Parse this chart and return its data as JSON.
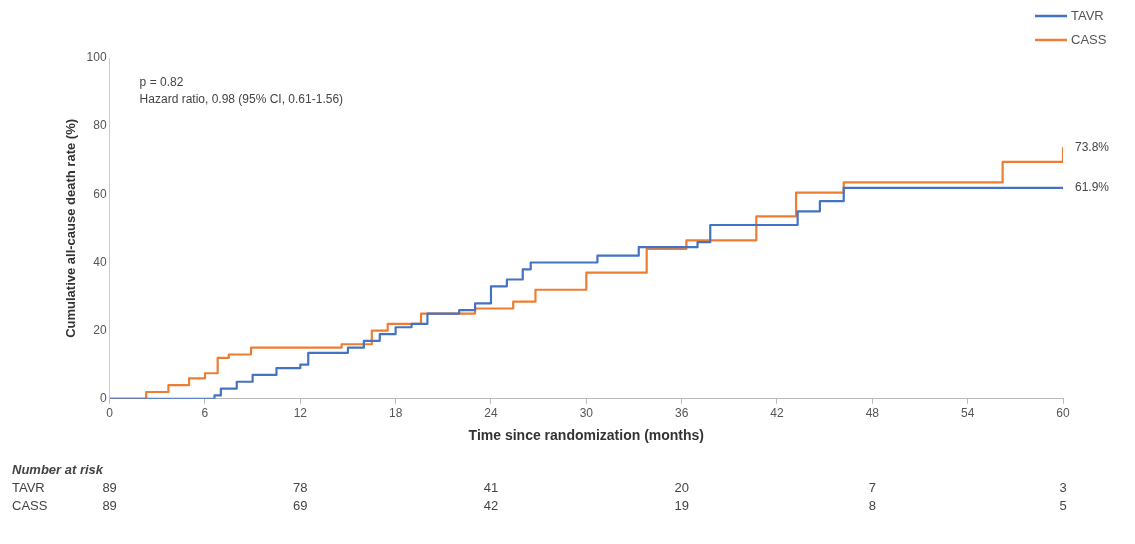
{
  "chart_data": {
    "type": "step",
    "xlabel": "Time since randomization (months)",
    "ylabel": "Cumulative all-cause death rate (%)",
    "xlim": [
      0,
      60
    ],
    "xticks": [
      0,
      6,
      12,
      18,
      24,
      30,
      36,
      42,
      48,
      54,
      60
    ],
    "ylim": [
      0,
      100
    ],
    "yticks": [
      0,
      20,
      40,
      60,
      80,
      100
    ],
    "grid": false,
    "legend": "top right",
    "line_style": "solid",
    "marker": "none",
    "series": [
      {
        "name": "TAVR",
        "color": "#4472c4",
        "x": [
          0,
          6.6,
          7,
          8,
          9,
          10.5,
          12,
          12.5,
          15,
          16,
          17,
          18,
          19,
          20,
          22,
          23,
          24,
          25,
          26,
          26.5,
          30.7,
          33.3,
          37,
          37.8,
          43.3,
          44.7,
          46.2,
          60
        ],
        "values": [
          0,
          1,
          3,
          5,
          7,
          9,
          10,
          13.5,
          15,
          17,
          19,
          21,
          22,
          25,
          26,
          28,
          33,
          35,
          38,
          40,
          42,
          44.5,
          46,
          51,
          55,
          58,
          61.9,
          61.9
        ]
      },
      {
        "name": "CASS",
        "color": "#ed7d31",
        "x": [
          0,
          2.3,
          3.7,
          5,
          6,
          6.8,
          7.5,
          8.9,
          14.6,
          16.5,
          17.5,
          19.6,
          23,
          25.4,
          26.8,
          30,
          33.8,
          36.3,
          40.7,
          43.2,
          46.2,
          56.2,
          60
        ],
        "values": [
          0,
          2,
          4,
          6,
          7.5,
          12,
          13,
          15,
          16,
          20,
          22,
          25,
          26.5,
          28.5,
          32,
          37,
          44,
          46.5,
          53.5,
          60.5,
          63.5,
          69.5,
          73.8
        ]
      }
    ],
    "annotations": [
      "p = 0.82",
      "Hazard ratio, 0.98 (95% CI, 0.61-1.56)",
      "Number at risk",
      "TAVR",
      "CASS",
      {
        "text": "73.8%",
        "x": 60,
        "y": 73.8
      },
      {
        "text": "61.9%",
        "x": 60,
        "y": 61.9
      },
      "89",
      "78",
      "41",
      "20",
      "7",
      "3",
      "89",
      "69",
      "42",
      "19",
      "8",
      "5"
    ]
  }
}
